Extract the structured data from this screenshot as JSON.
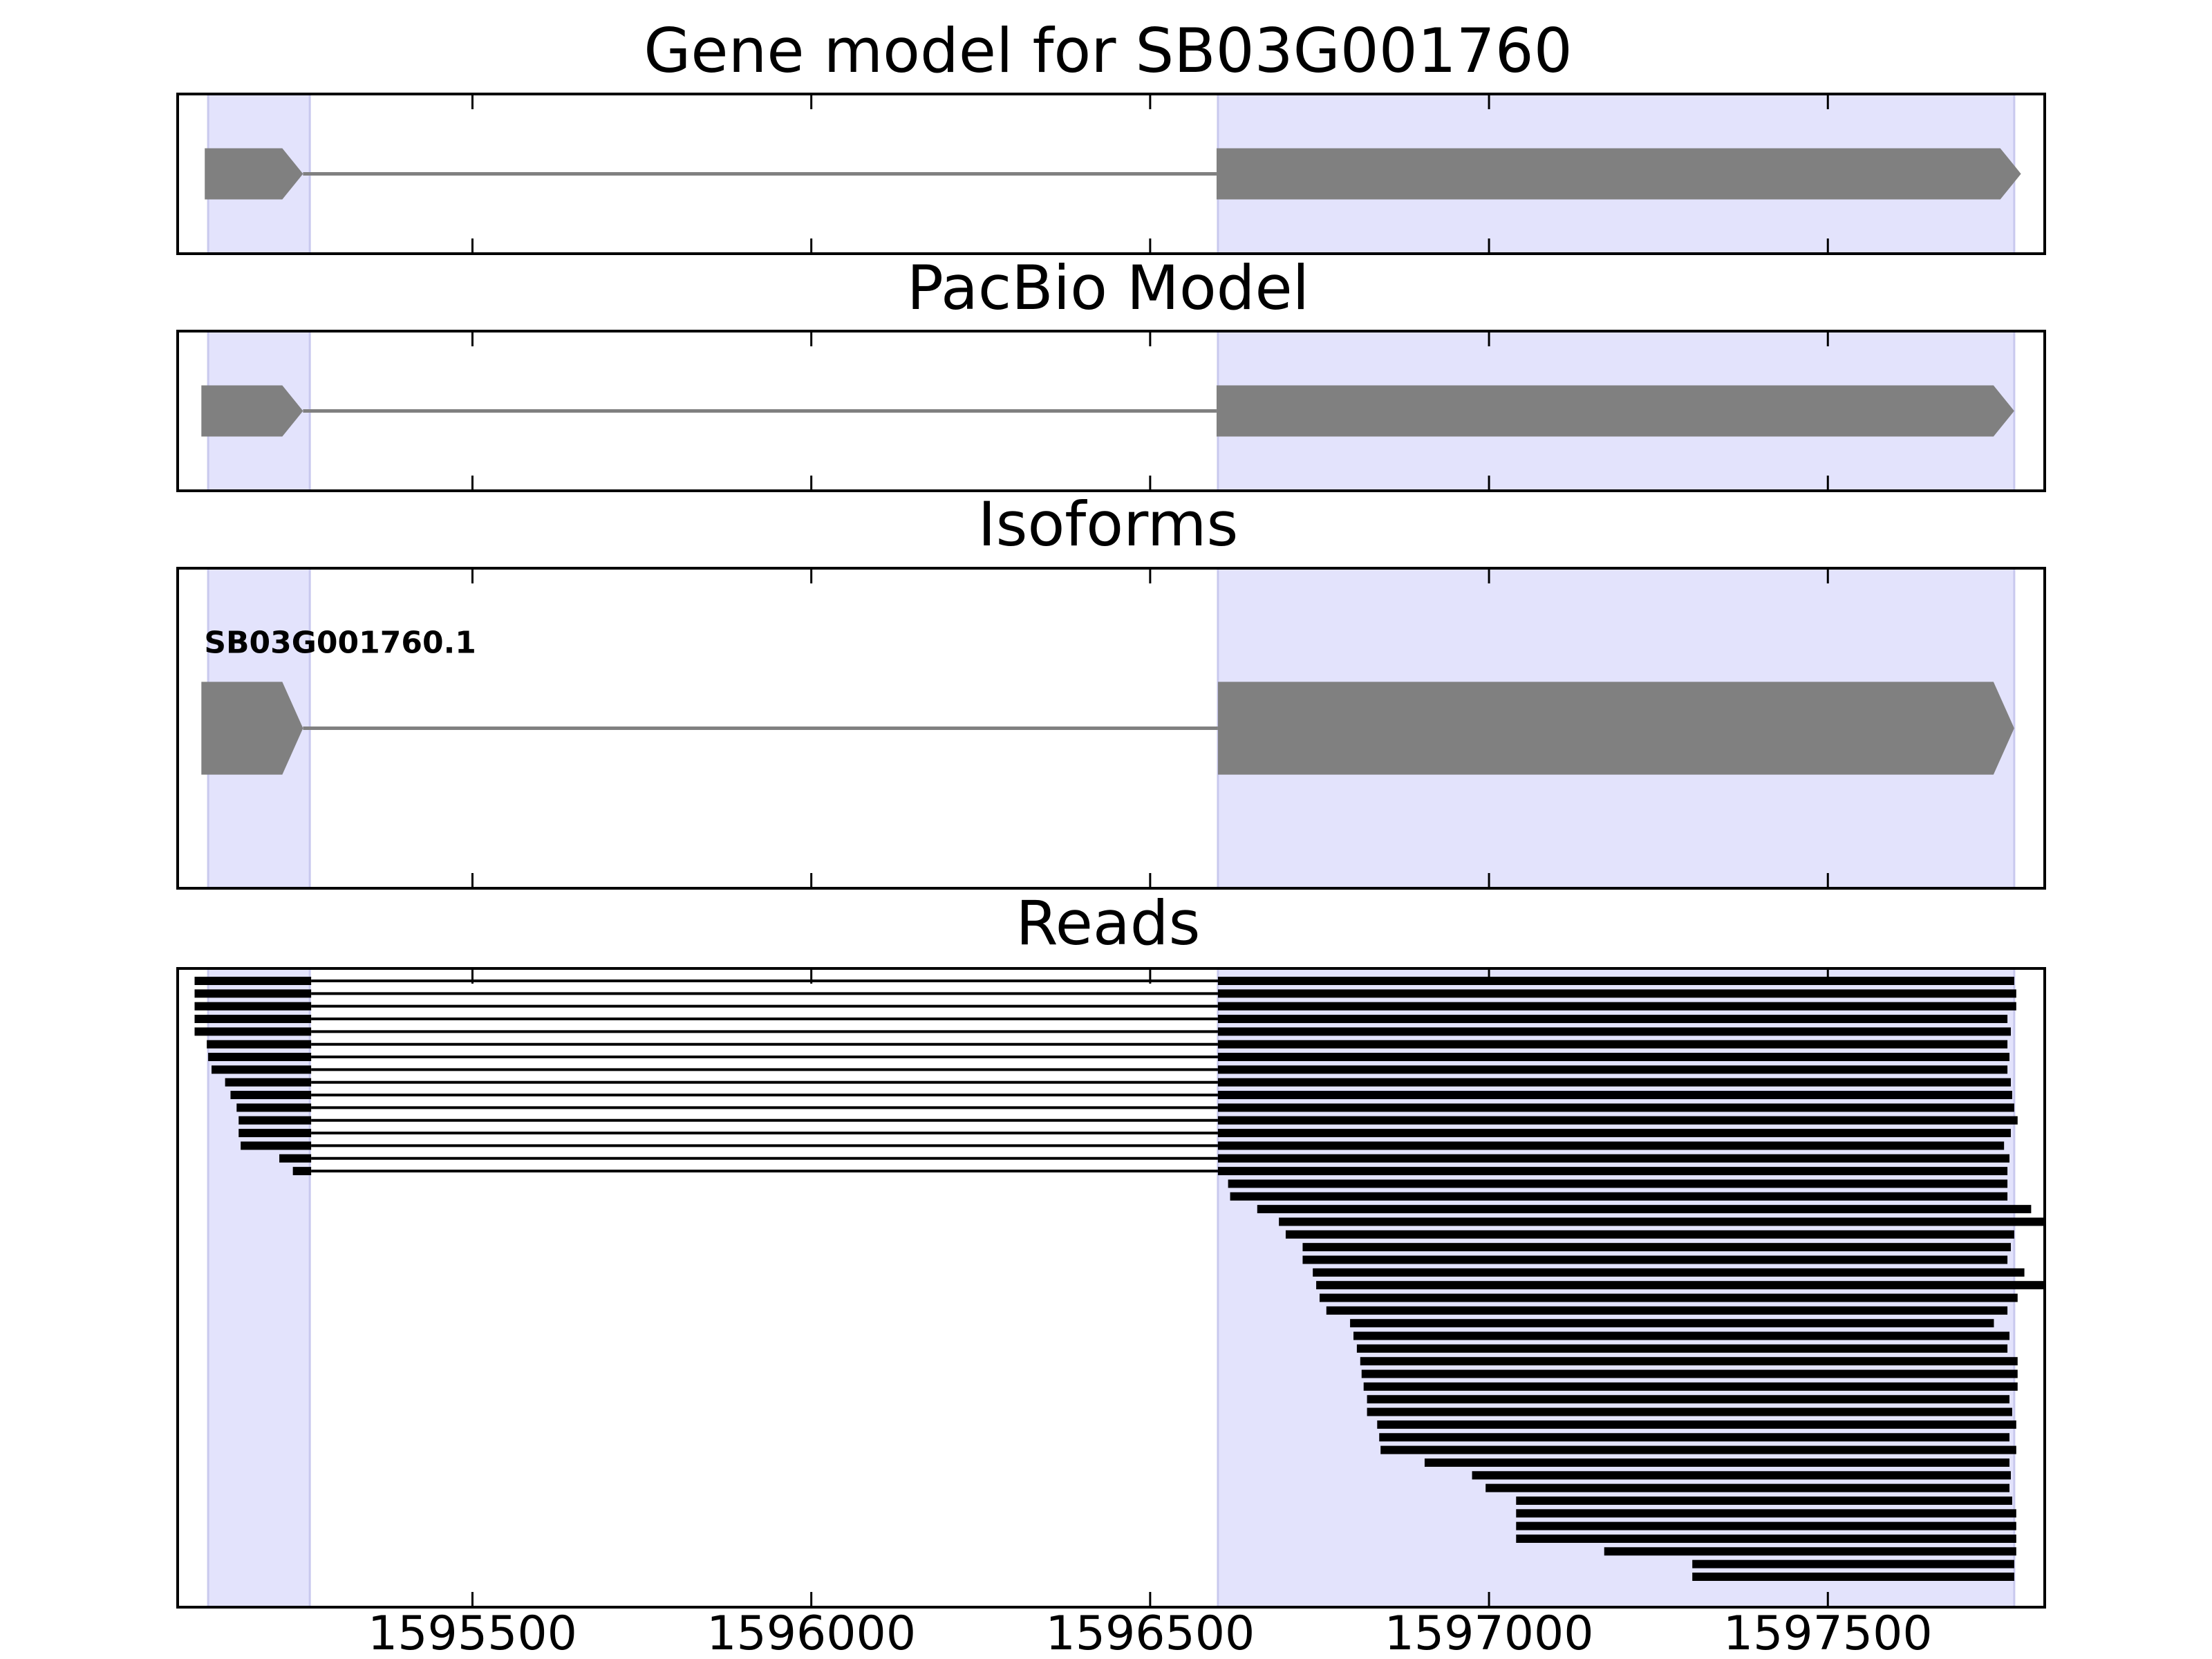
{
  "figure": {
    "title": "Gene model for SB03G001760",
    "colors": {
      "exon_shade": "#e3e3fc",
      "exon_edge": "#c9c9ee",
      "gene_feature": "#808080",
      "read": "#000000",
      "axes": "#000000"
    },
    "x_range": [
      1595065,
      1597820
    ],
    "x_ticks": [
      1595500,
      1596000,
      1596500,
      1597000,
      1597500
    ],
    "x_tick_labels": [
      "1595500",
      "1596000",
      "1596500",
      "1597000",
      "1597500"
    ],
    "exon_regions": [
      [
        1595110,
        1595260
      ],
      [
        1596600,
        1597775
      ]
    ]
  },
  "panels": [
    {
      "id": "gene-model",
      "title": "Gene model for SB03G001760",
      "features": [
        {
          "exons": [
            [
              1595105,
              1595250
            ],
            [
              1596598,
              1597785
            ]
          ],
          "strand": "+",
          "height": 0.32
        }
      ]
    },
    {
      "id": "pacbio-model",
      "title": "PacBio Model",
      "features": [
        {
          "exons": [
            [
              1595100,
              1595250
            ],
            [
              1596598,
              1597775
            ]
          ],
          "strand": "+",
          "height": 0.32
        }
      ]
    },
    {
      "id": "isoforms",
      "title": "Isoforms",
      "features": [
        {
          "name": "SB03G001760.1",
          "exons": [
            [
              1595100,
              1595250
            ],
            [
              1596600,
              1597775
            ]
          ],
          "strand": "+",
          "height": 0.29
        }
      ]
    },
    {
      "id": "reads",
      "title": "Reads",
      "reads": [
        [
          [
            1595090,
            1595262
          ],
          [
            1596600,
            1597775
          ]
        ],
        [
          [
            1595090,
            1595262
          ],
          [
            1596600,
            1597778
          ]
        ],
        [
          [
            1595090,
            1595262
          ],
          [
            1596600,
            1597778
          ]
        ],
        [
          [
            1595090,
            1595262
          ],
          [
            1596600,
            1597765
          ]
        ],
        [
          [
            1595090,
            1595262
          ],
          [
            1596600,
            1597770
          ]
        ],
        [
          [
            1595108,
            1595262
          ],
          [
            1596600,
            1597765
          ]
        ],
        [
          [
            1595110,
            1595262
          ],
          [
            1596600,
            1597768
          ]
        ],
        [
          [
            1595115,
            1595262
          ],
          [
            1596600,
            1597765
          ]
        ],
        [
          [
            1595135,
            1595262
          ],
          [
            1596600,
            1597770
          ]
        ],
        [
          [
            1595143,
            1595262
          ],
          [
            1596600,
            1597772
          ]
        ],
        [
          [
            1595152,
            1595262
          ],
          [
            1596600,
            1597775
          ]
        ],
        [
          [
            1595155,
            1595262
          ],
          [
            1596600,
            1597780
          ]
        ],
        [
          [
            1595155,
            1595262
          ],
          [
            1596600,
            1597770
          ]
        ],
        [
          [
            1595158,
            1595262
          ],
          [
            1596600,
            1597760
          ]
        ],
        [
          [
            1595215,
            1595262
          ],
          [
            1596600,
            1597768
          ]
        ],
        [
          [
            1595235,
            1595262
          ],
          [
            1596600,
            1597765
          ]
        ],
        [
          [
            1596615,
            1597765
          ]
        ],
        [
          [
            1596618,
            1597765
          ]
        ],
        [
          [
            1596658,
            1597800
          ]
        ],
        [
          [
            1596690,
            1597835
          ]
        ],
        [
          [
            1596700,
            1597775
          ]
        ],
        [
          [
            1596725,
            1597770
          ]
        ],
        [
          [
            1596725,
            1597765
          ]
        ],
        [
          [
            1596740,
            1597790
          ]
        ],
        [
          [
            1596745,
            1597835
          ]
        ],
        [
          [
            1596750,
            1597780
          ]
        ],
        [
          [
            1596760,
            1597765
          ]
        ],
        [
          [
            1596795,
            1597745
          ]
        ],
        [
          [
            1596800,
            1597768
          ]
        ],
        [
          [
            1596805,
            1597765
          ]
        ],
        [
          [
            1596810,
            1597780
          ]
        ],
        [
          [
            1596812,
            1597780
          ]
        ],
        [
          [
            1596815,
            1597780
          ]
        ],
        [
          [
            1596820,
            1597768
          ]
        ],
        [
          [
            1596820,
            1597772
          ]
        ],
        [
          [
            1596835,
            1597778
          ]
        ],
        [
          [
            1596838,
            1597768
          ]
        ],
        [
          [
            1596840,
            1597778
          ]
        ],
        [
          [
            1596905,
            1597768
          ]
        ],
        [
          [
            1596975,
            1597770
          ]
        ],
        [
          [
            1596995,
            1597768
          ]
        ],
        [
          [
            1597040,
            1597772
          ]
        ],
        [
          [
            1597040,
            1597778
          ]
        ],
        [
          [
            1597040,
            1597778
          ]
        ],
        [
          [
            1597040,
            1597778
          ]
        ],
        [
          [
            1597170,
            1597778
          ]
        ],
        [
          [
            1597300,
            1597775
          ]
        ],
        [
          [
            1597300,
            1597775
          ]
        ]
      ]
    }
  ]
}
